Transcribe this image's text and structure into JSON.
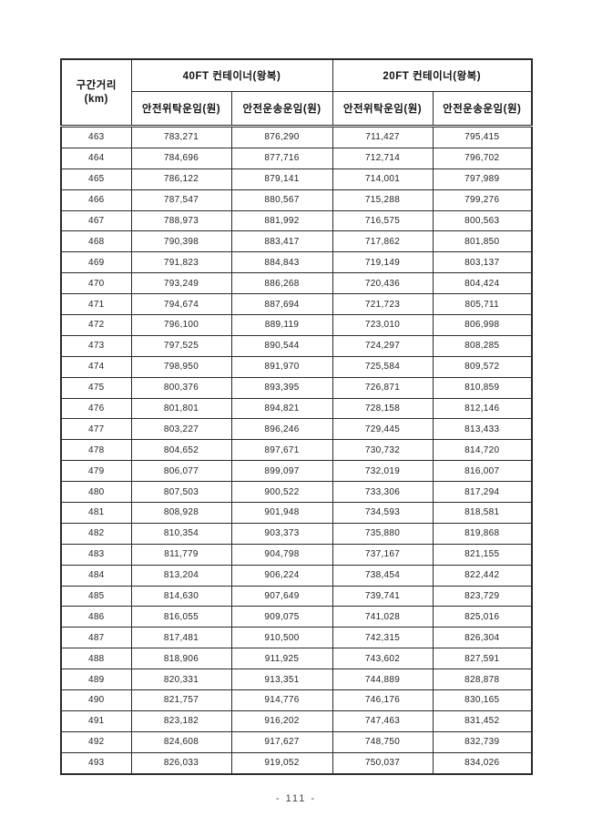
{
  "table": {
    "columns": {
      "distance_line1": "구간거리",
      "distance_line2": "(km)",
      "group_40ft": "40FT 컨테이너(왕복)",
      "group_20ft": "20FT 컨테이너(왕복)",
      "sub_headers": [
        "안전위탁운임(원)",
        "안전운송운임(원)",
        "안전위탁운임(원)",
        "안전운송운임(원)"
      ]
    },
    "rows": [
      [
        "463",
        "783,271",
        "876,290",
        "711,427",
        "795,415"
      ],
      [
        "464",
        "784,696",
        "877,716",
        "712,714",
        "796,702"
      ],
      [
        "465",
        "786,122",
        "879,141",
        "714,001",
        "797,989"
      ],
      [
        "466",
        "787,547",
        "880,567",
        "715,288",
        "799,276"
      ],
      [
        "467",
        "788,973",
        "881,992",
        "716,575",
        "800,563"
      ],
      [
        "468",
        "790,398",
        "883,417",
        "717,862",
        "801,850"
      ],
      [
        "469",
        "791,823",
        "884,843",
        "719,149",
        "803,137"
      ],
      [
        "470",
        "793,249",
        "886,268",
        "720,436",
        "804,424"
      ],
      [
        "471",
        "794,674",
        "887,694",
        "721,723",
        "805,711"
      ],
      [
        "472",
        "796,100",
        "889,119",
        "723,010",
        "806,998"
      ],
      [
        "473",
        "797,525",
        "890,544",
        "724,297",
        "808,285"
      ],
      [
        "474",
        "798,950",
        "891,970",
        "725,584",
        "809,572"
      ],
      [
        "475",
        "800,376",
        "893,395",
        "726,871",
        "810,859"
      ],
      [
        "476",
        "801,801",
        "894,821",
        "728,158",
        "812,146"
      ],
      [
        "477",
        "803,227",
        "896,246",
        "729,445",
        "813,433"
      ],
      [
        "478",
        "804,652",
        "897,671",
        "730,732",
        "814,720"
      ],
      [
        "479",
        "806,077",
        "899,097",
        "732,019",
        "816,007"
      ],
      [
        "480",
        "807,503",
        "900,522",
        "733,306",
        "817,294"
      ],
      [
        "481",
        "808,928",
        "901,948",
        "734,593",
        "818,581"
      ],
      [
        "482",
        "810,354",
        "903,373",
        "735,880",
        "819,868"
      ],
      [
        "483",
        "811,779",
        "904,798",
        "737,167",
        "821,155"
      ],
      [
        "484",
        "813,204",
        "906,224",
        "738,454",
        "822,442"
      ],
      [
        "485",
        "814,630",
        "907,649",
        "739,741",
        "823,729"
      ],
      [
        "486",
        "816,055",
        "909,075",
        "741,028",
        "825,016"
      ],
      [
        "487",
        "817,481",
        "910,500",
        "742,315",
        "826,304"
      ],
      [
        "488",
        "818,906",
        "911,925",
        "743,602",
        "827,591"
      ],
      [
        "489",
        "820,331",
        "913,351",
        "744,889",
        "828,878"
      ],
      [
        "490",
        "821,757",
        "914,776",
        "746,176",
        "830,165"
      ],
      [
        "491",
        "823,182",
        "916,202",
        "747,463",
        "831,452"
      ],
      [
        "492",
        "824,608",
        "917,627",
        "748,750",
        "832,739"
      ],
      [
        "493",
        "826,033",
        "919,052",
        "750,037",
        "834,026"
      ]
    ]
  },
  "footer": {
    "page_number": "- 111 -"
  }
}
